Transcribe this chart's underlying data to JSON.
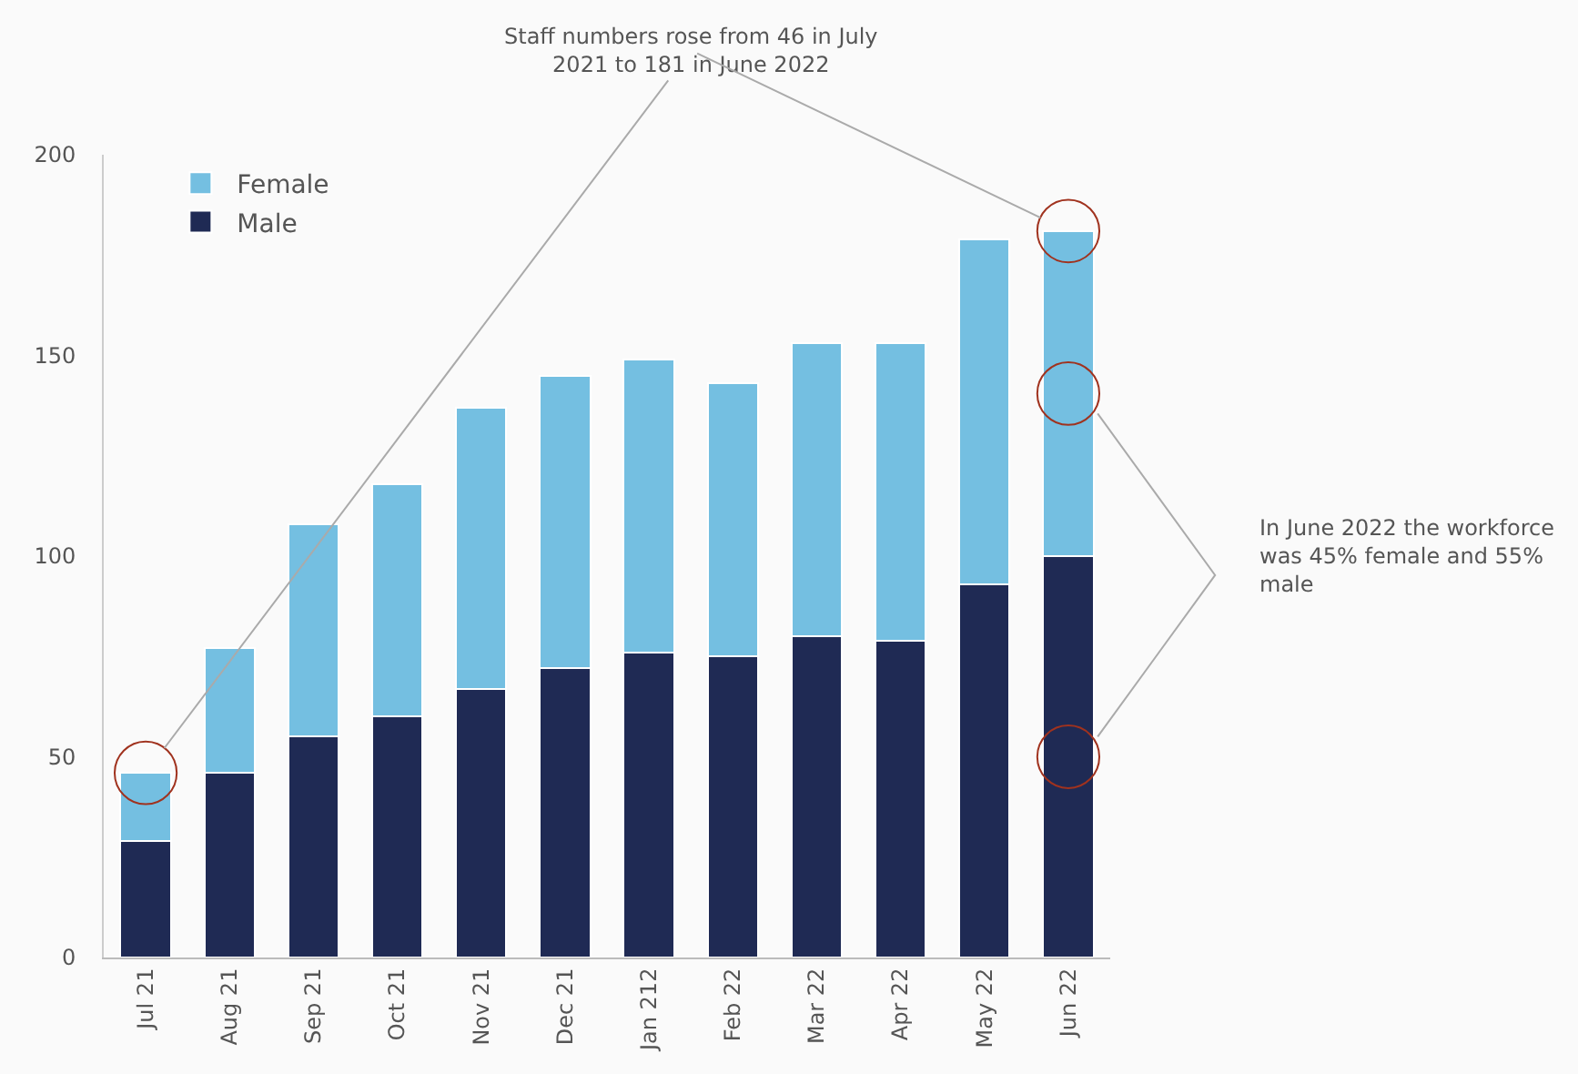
{
  "chart_data": {
    "type": "bar",
    "stacked": true,
    "categories": [
      "Jul 21",
      "Aug 21",
      "Sep 21",
      "Oct 21",
      "Nov 21",
      "Dec 21",
      "Jan 212",
      "Feb 22",
      "Mar 22",
      "Apr 22",
      "May 22",
      "Jun 22"
    ],
    "series": [
      {
        "name": "Male",
        "color": "#1f2a54",
        "values": [
          29,
          46,
          55,
          60,
          67,
          72,
          76,
          75,
          80,
          79,
          93,
          100
        ]
      },
      {
        "name": "Female",
        "color": "#74bfe1",
        "values": [
          17,
          31,
          53,
          58,
          70,
          73,
          73,
          68,
          73,
          74,
          86,
          81
        ]
      }
    ],
    "ylim": [
      0,
      200
    ],
    "yticks": [
      0,
      50,
      100,
      150,
      200
    ],
    "grid": false,
    "legend": "top left",
    "annotations": [
      "Staff numbers rose from 46 in July 2021 to 181 in June 2022",
      "In June 2022 the workforce was 45% female and 55% male"
    ]
  }
}
